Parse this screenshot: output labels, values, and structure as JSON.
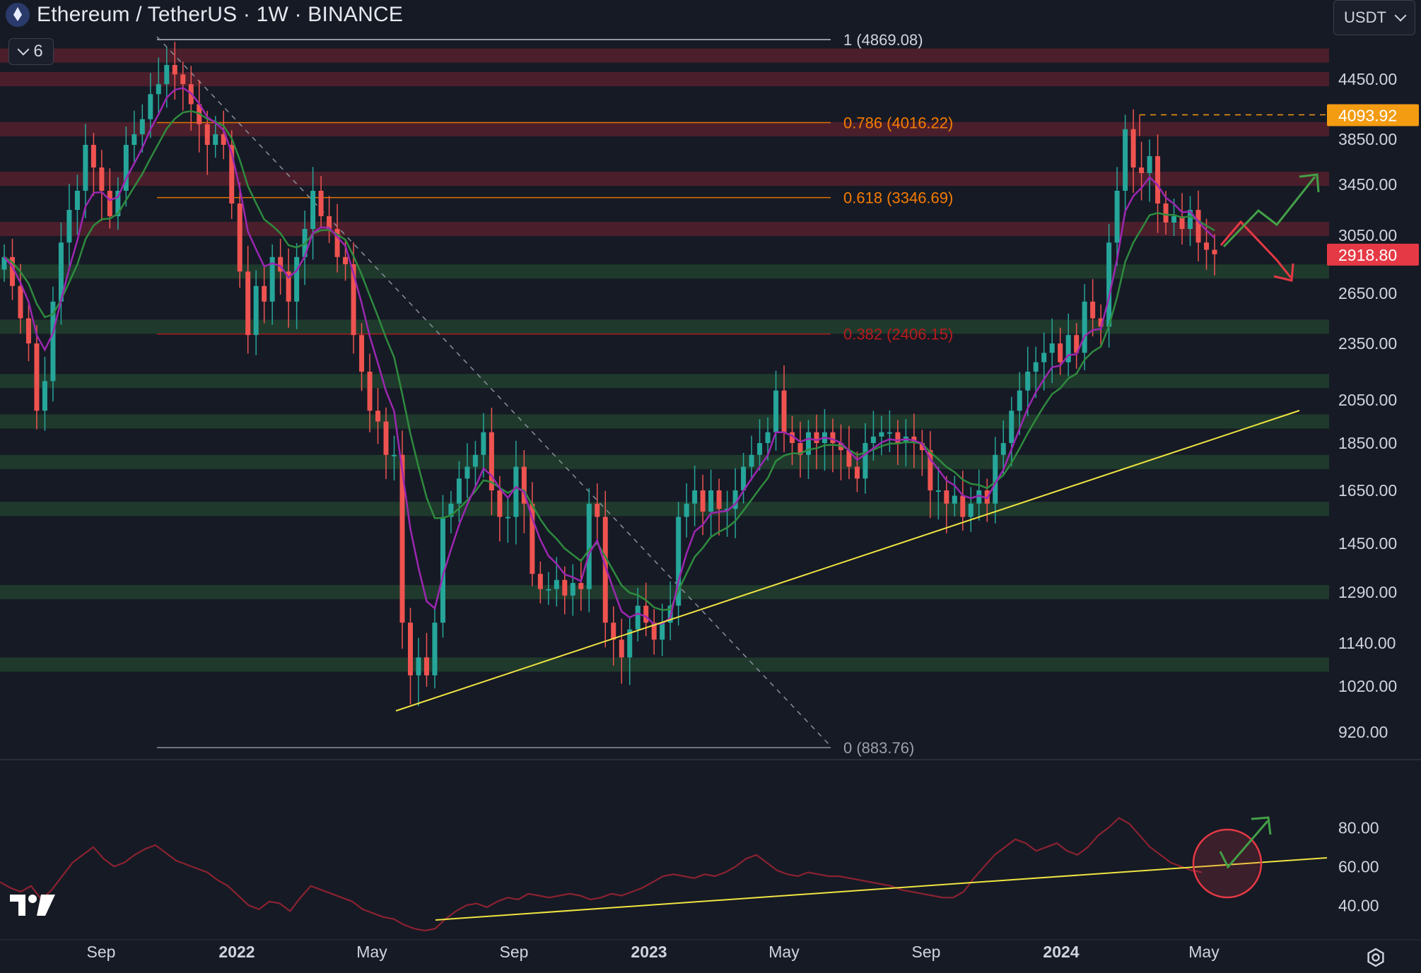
{
  "header": {
    "title": "Ethereum / TetherUS · 1W · BINANCE",
    "indicator_count": "6",
    "currency": "USDT"
  },
  "colors": {
    "background": "#161a25",
    "resistance_zone": "#4a1f2b",
    "support_zone": "#1f3a2c",
    "up_candle": "#26a69a",
    "down_candle": "#ef5350",
    "ema_fast": "#9c27b0",
    "ema_slow": "#2e8b3e",
    "trendline": "#f0e442",
    "rsi_line": "#8b2230"
  },
  "chart_data": [
    {
      "type": "candlestick",
      "title": "Ethereum / TetherUS · 1W · BINANCE",
      "x_tick_labels": [
        "Sep",
        "2022",
        "May",
        "Sep",
        "2023",
        "May",
        "Sep",
        "2024",
        "May"
      ],
      "y_tick_labels": [
        "4450.00",
        "3850.00",
        "3450.00",
        "3050.00",
        "2650.00",
        "2350.00",
        "2050.00",
        "1850.00",
        "1650.00",
        "1450.00",
        "1290.00",
        "1140.00",
        "1020.00",
        "920.00"
      ],
      "price_labels": [
        {
          "value": "4093.92",
          "color": "#f39c12"
        },
        {
          "value": "2918.80",
          "color": "#e53945"
        }
      ],
      "fibonacci": [
        {
          "label": "1 (4869.08)",
          "level": 1,
          "price": 4869.08,
          "color": "#d1d4dc"
        },
        {
          "label": "0.786 (4016.22)",
          "level": 0.786,
          "price": 4016.22,
          "color": "#f57c00"
        },
        {
          "label": "0.618 (3346.69)",
          "level": 0.618,
          "price": 3346.69,
          "color": "#f57c00"
        },
        {
          "label": "0.382 (2406.15)",
          "level": 0.382,
          "price": 2406.15,
          "color": "#b71c1c"
        },
        {
          "label": "0 (883.76)",
          "level": 0,
          "price": 883.76,
          "color": "#9aa0ac"
        }
      ],
      "resistance_zones": [
        4700,
        4450,
        3950,
        3500,
        3100
      ],
      "support_zones": [
        2800,
        2450,
        2150,
        1950,
        1770,
        1580,
        1290,
        1080
      ],
      "series_close": [
        2900,
        2700,
        2500,
        2350,
        2000,
        2150,
        2600,
        3000,
        3250,
        3400,
        3800,
        3600,
        3400,
        3200,
        3400,
        3800,
        3900,
        4050,
        4300,
        4400,
        4600,
        4500,
        4400,
        4200,
        4000,
        3800,
        3900,
        3800,
        3300,
        2800,
        2400,
        2700,
        2600,
        2900,
        2800,
        2600,
        2900,
        3100,
        3400,
        3200,
        3100,
        2900,
        2850,
        2400,
        2200,
        2000,
        1950,
        1800,
        1800,
        1200,
        1050,
        1100,
        1050,
        1200,
        1550,
        1600,
        1700,
        1750,
        1800,
        1900,
        1650,
        1550,
        1550,
        1750,
        1600,
        1350,
        1300,
        1300,
        1330,
        1280,
        1320,
        1300,
        1600,
        1550,
        1200,
        1150,
        1100,
        1180,
        1250,
        1200,
        1150,
        1200,
        1250,
        1550,
        1600,
        1650,
        1570,
        1650,
        1580,
        1580,
        1650,
        1750,
        1800,
        1850,
        1900,
        2100,
        1900,
        1850,
        1800,
        1900,
        1850,
        1900,
        1850,
        1820,
        1750,
        1700,
        1850,
        1880,
        1900,
        1900,
        1850,
        1880,
        1850,
        1820,
        1650,
        1650,
        1600,
        1630,
        1550,
        1600,
        1650,
        1600,
        1800,
        1850,
        2000,
        2100,
        2200,
        2250,
        2300,
        2350,
        2250,
        2400,
        2300,
        2600,
        2500,
        2450,
        3000,
        3400,
        3950,
        3600,
        3550,
        3700,
        3300,
        3150,
        3200,
        3100,
        3250,
        3000,
        2950,
        2918.8
      ],
      "rsi_tick_labels": [
        "80.00",
        "60.00",
        "40.00"
      ],
      "rsi_series": [
        52,
        49,
        47,
        50,
        43,
        48,
        55,
        62,
        66,
        70,
        64,
        60,
        62,
        66,
        69,
        71,
        67,
        63,
        61,
        59,
        57,
        53,
        50,
        45,
        40,
        38,
        42,
        41,
        37,
        44,
        50,
        48,
        46,
        44,
        42,
        38,
        36,
        34,
        33,
        30,
        28,
        27,
        28,
        33,
        37,
        40,
        41,
        39,
        42,
        44,
        43,
        46,
        45,
        44,
        45,
        46,
        45,
        43,
        44,
        46,
        45,
        47,
        49,
        52,
        55,
        56,
        55,
        54,
        56,
        55,
        57,
        60,
        64,
        66,
        62,
        58,
        56,
        55,
        57,
        56,
        55,
        55,
        54,
        53,
        52,
        51,
        50,
        48,
        47,
        46,
        45,
        44,
        44,
        47,
        54,
        60,
        66,
        70,
        74,
        72,
        68,
        70,
        72,
        68,
        66,
        70,
        76,
        80,
        85,
        82,
        76,
        70,
        66,
        62,
        60,
        58,
        57
      ]
    }
  ]
}
